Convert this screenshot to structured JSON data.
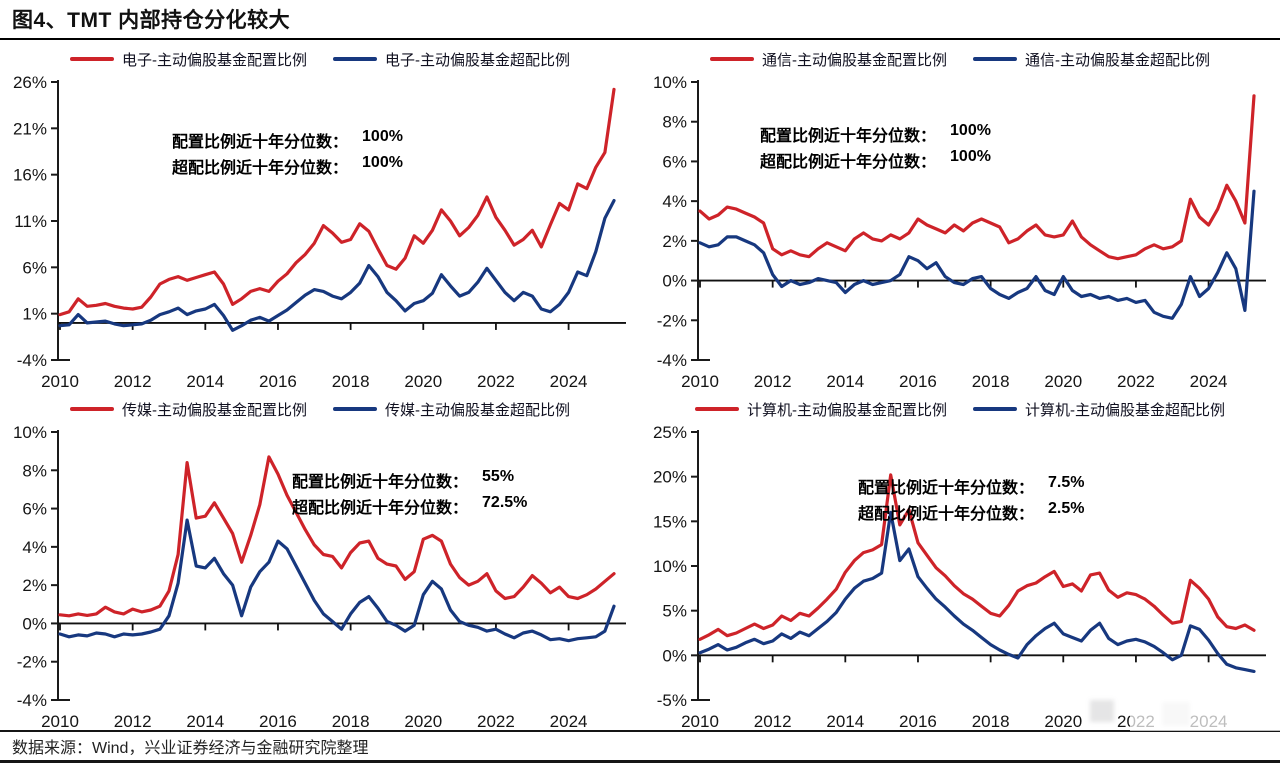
{
  "page": {
    "title": "图4、TMT 内部持仓分化较大",
    "source": "数据来源：Wind，兴业证券经济与金融研究院整理"
  },
  "colors": {
    "alloc_red": "#CE2329",
    "over_blue": "#17387F",
    "axis": "#1a1a1a"
  },
  "chart_data": [
    {
      "type": "line",
      "sector": "电子",
      "x_start": "2010Q1",
      "x_end": "2025Q2",
      "x_unit": "quarter",
      "x_labels": [
        "2010",
        "2012",
        "2014",
        "2016",
        "2018",
        "2020",
        "2022",
        "2024"
      ],
      "ylim": [
        -4,
        26
      ],
      "yticks": [
        26,
        21,
        16,
        11,
        6,
        1,
        -4
      ],
      "grid": false,
      "legend_position": "top",
      "legend": [
        "电子-主动偏股基金配置比例",
        "电子-主动偏股基金超配比例"
      ],
      "annotation": {
        "l1": "配置比例近十年分位数：",
        "v1": "100%",
        "l2": "超配比例近十年分位数：",
        "v2": "100%"
      },
      "series": [
        {
          "name": "电子-主动偏股基金配置比例",
          "color": "#CE2329",
          "values": [
            0.9,
            1.2,
            2.6,
            1.8,
            1.9,
            2.1,
            1.8,
            1.6,
            1.5,
            1.7,
            2.8,
            4.2,
            4.7,
            5.0,
            4.6,
            4.9,
            5.2,
            5.5,
            4.2,
            2.0,
            2.6,
            3.4,
            3.7,
            3.4,
            4.5,
            5.3,
            6.5,
            7.4,
            8.6,
            10.5,
            9.7,
            8.7,
            9.0,
            10.7,
            9.9,
            8.0,
            6.2,
            5.8,
            7.0,
            9.4,
            8.6,
            10.0,
            12.2,
            11.0,
            9.4,
            10.3,
            11.6,
            13.6,
            11.4,
            10.0,
            8.4,
            9.0,
            10.0,
            8.2,
            10.6,
            12.9,
            12.2,
            15.0,
            14.5,
            16.8,
            18.4,
            25.2
          ]
        },
        {
          "name": "电子-主动偏股基金超配比例",
          "color": "#17387F",
          "values": [
            -0.3,
            -0.2,
            0.9,
            0.0,
            0.1,
            0.2,
            -0.1,
            -0.3,
            -0.2,
            -0.1,
            0.3,
            0.9,
            1.2,
            1.6,
            0.9,
            1.3,
            1.5,
            2.0,
            0.8,
            -0.8,
            -0.3,
            0.3,
            0.6,
            0.2,
            0.8,
            1.4,
            2.2,
            3.0,
            3.6,
            3.4,
            2.9,
            2.6,
            3.3,
            4.3,
            6.2,
            5.0,
            3.3,
            2.4,
            1.3,
            2.1,
            2.4,
            3.2,
            5.2,
            4.0,
            2.9,
            3.3,
            4.4,
            5.9,
            4.6,
            3.3,
            2.4,
            3.3,
            2.9,
            1.5,
            1.2,
            2.0,
            3.3,
            5.5,
            5.1,
            7.7,
            11.3,
            13.2
          ]
        }
      ]
    },
    {
      "type": "line",
      "sector": "通信",
      "x_start": "2010Q1",
      "x_end": "2025Q2",
      "x_unit": "quarter",
      "x_labels": [
        "2010",
        "2012",
        "2014",
        "2016",
        "2018",
        "2020",
        "2022",
        "2024"
      ],
      "ylim": [
        -4,
        10
      ],
      "yticks": [
        10,
        8,
        6,
        4,
        2,
        0,
        -2,
        -4
      ],
      "grid": false,
      "legend_position": "top",
      "legend": [
        "通信-主动偏股基金配置比例",
        "通信-主动偏股基金超配比例"
      ],
      "annotation": {
        "l1": "配置比例近十年分位数：",
        "v1": "100%",
        "l2": "超配比例近十年分位数：",
        "v2": "100%"
      },
      "series": [
        {
          "name": "通信-主动偏股基金配置比例",
          "color": "#CE2329",
          "values": [
            3.5,
            3.1,
            3.3,
            3.7,
            3.6,
            3.4,
            3.2,
            2.9,
            1.6,
            1.3,
            1.5,
            1.3,
            1.2,
            1.6,
            1.9,
            1.7,
            1.5,
            2.1,
            2.4,
            2.1,
            2.0,
            2.3,
            2.1,
            2.4,
            3.1,
            2.8,
            2.6,
            2.4,
            2.8,
            2.5,
            2.9,
            3.1,
            2.9,
            2.7,
            1.9,
            2.1,
            2.5,
            2.8,
            2.3,
            2.2,
            2.3,
            3.0,
            2.2,
            1.8,
            1.5,
            1.2,
            1.1,
            1.2,
            1.3,
            1.6,
            1.8,
            1.6,
            1.7,
            2.0,
            4.1,
            3.2,
            2.8,
            3.6,
            4.8,
            4.0,
            2.9,
            9.3
          ]
        },
        {
          "name": "通信-主动偏股基金超配比例",
          "color": "#17387F",
          "values": [
            1.9,
            1.7,
            1.8,
            2.2,
            2.2,
            2.0,
            1.8,
            1.4,
            0.3,
            -0.3,
            0.0,
            -0.2,
            -0.1,
            0.1,
            0.0,
            -0.1,
            -0.6,
            -0.2,
            0.0,
            -0.2,
            -0.1,
            0.0,
            0.3,
            1.2,
            1.0,
            0.6,
            0.9,
            0.2,
            -0.1,
            -0.2,
            0.1,
            0.2,
            -0.4,
            -0.7,
            -0.9,
            -0.6,
            -0.4,
            0.2,
            -0.5,
            -0.7,
            0.2,
            -0.5,
            -0.8,
            -0.7,
            -0.9,
            -0.8,
            -1.0,
            -0.9,
            -1.1,
            -1.0,
            -1.6,
            -1.8,
            -1.9,
            -1.2,
            0.2,
            -0.8,
            -0.4,
            0.4,
            1.4,
            0.6,
            -1.5,
            4.5
          ]
        }
      ]
    },
    {
      "type": "line",
      "sector": "传媒",
      "x_start": "2010Q1",
      "x_end": "2025Q2",
      "x_unit": "quarter",
      "x_labels": [
        "2010",
        "2012",
        "2014",
        "2016",
        "2018",
        "2020",
        "2022",
        "2024"
      ],
      "ylim": [
        -4,
        10
      ],
      "yticks": [
        10,
        8,
        6,
        4,
        2,
        0,
        -2,
        -4
      ],
      "grid": false,
      "legend_position": "top",
      "legend": [
        "传媒-主动偏股基金配置比例",
        "传媒-主动偏股基金超配比例"
      ],
      "annotation": {
        "l1": "配置比例近十年分位数：",
        "v1": "55%",
        "l2": "超配比例近十年分位数：",
        "v2": "72.5%"
      },
      "series": [
        {
          "name": "传媒-主动偏股基金配置比例",
          "color": "#CE2329",
          "values": [
            0.45,
            0.4,
            0.5,
            0.42,
            0.5,
            0.85,
            0.6,
            0.5,
            0.75,
            0.6,
            0.7,
            0.9,
            1.7,
            3.6,
            8.4,
            5.5,
            5.6,
            6.3,
            5.5,
            4.7,
            3.2,
            4.6,
            6.2,
            8.7,
            7.8,
            6.7,
            5.8,
            4.9,
            4.1,
            3.6,
            3.5,
            2.9,
            3.7,
            4.2,
            4.3,
            3.4,
            3.1,
            3.0,
            2.3,
            2.7,
            4.4,
            4.6,
            4.3,
            3.1,
            2.4,
            2.0,
            2.2,
            2.6,
            1.7,
            1.3,
            1.4,
            1.9,
            2.5,
            2.1,
            1.6,
            1.9,
            1.4,
            1.3,
            1.5,
            1.8,
            2.2,
            2.6
          ]
        },
        {
          "name": "传媒-主动偏股基金超配比例",
          "color": "#17387F",
          "values": [
            -0.55,
            -0.7,
            -0.6,
            -0.65,
            -0.5,
            -0.55,
            -0.7,
            -0.55,
            -0.6,
            -0.55,
            -0.45,
            -0.3,
            0.4,
            2.1,
            5.4,
            3.0,
            2.9,
            3.4,
            2.6,
            2.0,
            0.4,
            1.9,
            2.7,
            3.2,
            4.3,
            3.9,
            3.0,
            2.1,
            1.2,
            0.5,
            0.1,
            -0.3,
            0.5,
            1.1,
            1.4,
            0.8,
            0.1,
            -0.1,
            -0.4,
            -0.1,
            1.5,
            2.2,
            1.8,
            0.7,
            0.1,
            -0.1,
            -0.2,
            -0.4,
            -0.3,
            -0.55,
            -0.75,
            -0.5,
            -0.4,
            -0.6,
            -0.85,
            -0.8,
            -0.9,
            -0.8,
            -0.75,
            -0.7,
            -0.4,
            0.9
          ]
        }
      ]
    },
    {
      "type": "line",
      "sector": "计算机",
      "x_start": "2010Q1",
      "x_end": "2025Q2",
      "x_unit": "quarter",
      "x_labels": [
        "2010",
        "2012",
        "2014",
        "2016",
        "2018",
        "2020",
        "2022",
        "2024"
      ],
      "ylim": [
        -5,
        25
      ],
      "yticks": [
        25,
        20,
        15,
        10,
        5,
        0,
        -5
      ],
      "grid": false,
      "legend_position": "top",
      "legend": [
        "计算机-主动偏股基金配置比例",
        "计算机-主动偏股基金超配比例"
      ],
      "annotation": {
        "l1": "配置比例近十年分位数：",
        "v1": "7.5%",
        "l2": "超配比例近十年分位数：",
        "v2": "2.5%"
      },
      "series": [
        {
          "name": "计算机-主动偏股基金配置比例",
          "color": "#CE2329",
          "values": [
            1.8,
            2.3,
            2.9,
            2.2,
            2.5,
            3.0,
            3.5,
            3.0,
            3.4,
            4.4,
            3.9,
            4.7,
            4.4,
            5.3,
            6.3,
            7.4,
            9.3,
            10.6,
            11.5,
            11.8,
            12.4,
            20.2,
            14.6,
            16.3,
            12.6,
            11.2,
            9.8,
            8.9,
            7.8,
            6.9,
            6.3,
            5.5,
            4.7,
            4.4,
            5.6,
            7.2,
            7.8,
            8.1,
            8.8,
            9.4,
            7.7,
            8.0,
            7.2,
            9.0,
            9.2,
            7.3,
            6.5,
            7.0,
            6.8,
            6.3,
            5.5,
            4.5,
            3.6,
            3.8,
            8.4,
            7.5,
            6.3,
            4.3,
            3.2,
            3.0,
            3.4,
            2.8
          ]
        },
        {
          "name": "计算机-主动偏股基金超配比例",
          "color": "#17387F",
          "values": [
            0.3,
            0.7,
            1.2,
            0.6,
            0.9,
            1.4,
            1.8,
            1.3,
            1.6,
            2.4,
            1.9,
            2.6,
            2.2,
            3.0,
            3.8,
            4.8,
            6.3,
            7.5,
            8.3,
            8.6,
            9.2,
            16.0,
            10.6,
            11.9,
            8.8,
            7.5,
            6.3,
            5.4,
            4.4,
            3.5,
            2.8,
            2.0,
            1.2,
            0.6,
            0.1,
            -0.3,
            1.2,
            2.2,
            3.0,
            3.6,
            2.4,
            2.0,
            1.6,
            2.8,
            3.6,
            1.9,
            1.2,
            1.6,
            1.8,
            1.5,
            1.0,
            0.3,
            -0.5,
            0.0,
            3.3,
            2.9,
            1.7,
            0.2,
            -1.0,
            -1.4,
            -1.6,
            -1.8
          ]
        }
      ]
    }
  ]
}
